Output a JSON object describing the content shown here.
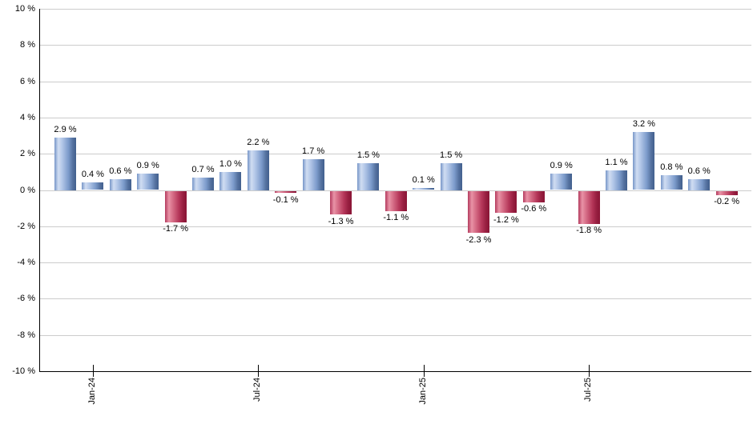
{
  "chart_data": {
    "type": "bar",
    "title": "",
    "xlabel": "",
    "ylabel": "",
    "unit": "%",
    "ylim": [
      -10,
      10
    ],
    "grid": true,
    "legend": "none",
    "values": [
      2.9,
      0.4,
      0.6,
      0.9,
      -1.7,
      0.7,
      1.0,
      2.2,
      -0.1,
      1.7,
      -1.3,
      1.5,
      -1.1,
      0.1,
      1.5,
      -2.3,
      -1.2,
      -0.6,
      0.9,
      -1.8,
      1.1,
      3.2,
      0.8,
      0.6,
      -0.2
    ],
    "value_labels": [
      "2.9 %",
      "0.4 %",
      "0.6 %",
      "0.9 %",
      "-1.7 %",
      "0.7 %",
      "1.0 %",
      "2.2 %",
      "-0.1 %",
      "1.7 %",
      "-1.3 %",
      "1.5 %",
      "-1.1 %",
      "0.1 %",
      "1.5 %",
      "-2.3 %",
      "-1.2 %",
      "-0.6 %",
      "0.9 %",
      "-1.8 %",
      "1.1 %",
      "3.2 %",
      "0.8 %",
      "0.6 %",
      "-0.2 %"
    ],
    "x_ticks": [
      {
        "label": "Jan-24",
        "bar_index": 1
      },
      {
        "label": "Jul-24",
        "bar_index": 7
      },
      {
        "label": "Jan-25",
        "bar_index": 13
      },
      {
        "label": "Jul-25",
        "bar_index": 19
      }
    ],
    "y_tick_values": [
      10,
      8,
      6,
      4,
      2,
      0,
      -2,
      -4,
      -6,
      -8,
      -10
    ],
    "y_tick_labels": [
      "10 %",
      "8 %",
      "6 %",
      "4 %",
      "2 %",
      "0 %",
      "-2 %",
      "-4 %",
      "-6 %",
      "-8 %",
      "-10 %"
    ],
    "gridline_values": [
      10,
      8,
      6,
      4,
      2,
      0,
      -2,
      -4,
      -6,
      -8
    ],
    "colors": {
      "gridline": "#cccccc",
      "axis": "#000000",
      "label_text": "#000000",
      "positive_gradient": [
        [
          "#7796c8",
          0
        ],
        [
          "#d0ddf2",
          18
        ],
        [
          "#b3c7e8",
          35
        ],
        [
          "#7b9aca",
          65
        ],
        [
          "#54719f",
          85
        ],
        [
          "#42608e",
          100
        ]
      ],
      "negative_gradient": [
        [
          "#b43b5e",
          0
        ],
        [
          "#e893a6",
          18
        ],
        [
          "#d76f88",
          35
        ],
        [
          "#b43558",
          65
        ],
        [
          "#951e3f",
          85
        ],
        [
          "#8a1536",
          100
        ]
      ]
    }
  }
}
